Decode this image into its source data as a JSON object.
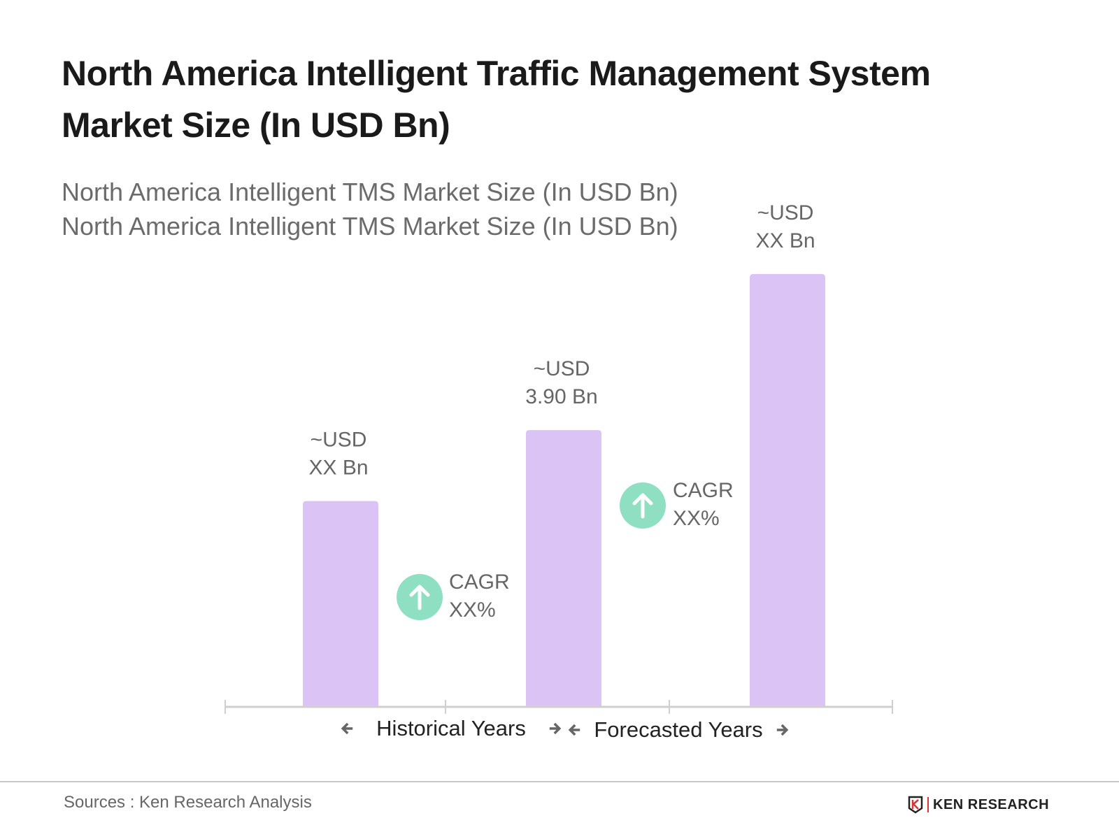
{
  "title_lines": [
    "North America Intelligent Traffic Management System",
    "Market Size (In USD Bn)"
  ],
  "subtitle_lines": [
    "North America Intelligent TMS Market Size (In USD Bn)",
    "North America Intelligent TMS Market Size (In USD Bn)"
  ],
  "chart_data": {
    "type": "bar",
    "values": [
      2.9,
      3.9,
      6.1
    ],
    "data_labels": [
      [
        "~USD",
        "XX Bn"
      ],
      [
        "~USD",
        "3.90 Bn"
      ],
      [
        "~USD",
        "XX Bn"
      ]
    ],
    "bar_color": "#dcc3f5",
    "cagr_labels": [
      [
        "CAGR",
        "XX%"
      ],
      [
        "CAGR",
        "XX%"
      ]
    ],
    "cagr_icon": "arrow-up-circle-icon",
    "cagr_color": "#8fdfc2",
    "period_labels": [
      "Historical Years",
      "Forecasted Years"
    ],
    "grid": false
  },
  "footer": {
    "source": "Sources : Ken Research Analysis",
    "logo_text": "KEN RESEARCH"
  }
}
